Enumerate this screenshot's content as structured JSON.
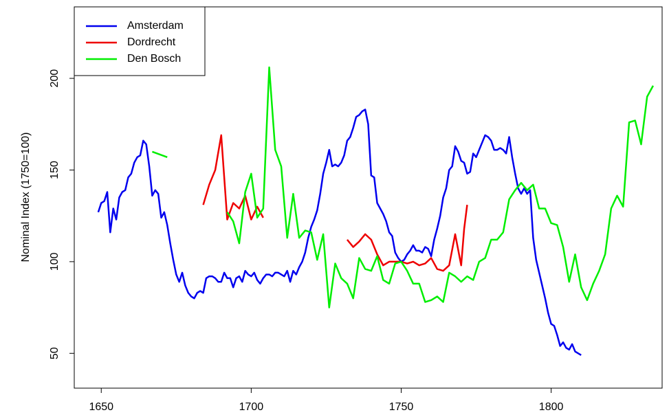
{
  "chart_data": {
    "type": "line",
    "ylabel": "Nominal Index (1750=100)",
    "xlim": [
      1641,
      1837
    ],
    "ylim": [
      31,
      239
    ],
    "xticks": [
      1650,
      1700,
      1750,
      1800
    ],
    "yticks": [
      50,
      100,
      150,
      200
    ],
    "legend": "topleft",
    "series": [
      {
        "name": "Amsterdam",
        "color": "#0000ee",
        "x": [
          1649,
          1650,
          1651,
          1652,
          1653,
          1654,
          1655,
          1656,
          1657,
          1658,
          1659,
          1660,
          1661,
          1662,
          1663,
          1664,
          1665,
          1666,
          1667,
          1668,
          1669,
          1670,
          1671,
          1672,
          1673,
          1674,
          1675,
          1676,
          1677,
          1678,
          1679,
          1680,
          1681,
          1682,
          1683,
          1684,
          1685,
          1686,
          1687,
          1688,
          1689,
          1690,
          1691,
          1692,
          1693,
          1694,
          1695,
          1696,
          1697,
          1698,
          1699,
          1700,
          1701,
          1702,
          1703,
          1704,
          1705,
          1706,
          1707,
          1708,
          1709,
          1710,
          1711,
          1712,
          1713,
          1714,
          1715,
          1716,
          1717,
          1718,
          1719,
          1720,
          1721,
          1722,
          1723,
          1724,
          1725,
          1726,
          1727,
          1728,
          1729,
          1730,
          1731,
          1732,
          1733,
          1734,
          1735,
          1736,
          1737,
          1738,
          1739,
          1740,
          1741,
          1742,
          1743,
          1744,
          1745,
          1746,
          1747,
          1748,
          1749,
          1750,
          1751,
          1752,
          1753,
          1754,
          1755,
          1756,
          1757,
          1758,
          1759,
          1760,
          1761,
          1762,
          1763,
          1764,
          1765,
          1766,
          1767,
          1768,
          1769,
          1770,
          1771,
          1772,
          1773,
          1774,
          1775,
          1776,
          1777,
          1778,
          1779,
          1780,
          1781,
          1782,
          1783,
          1784,
          1785,
          1786,
          1787,
          1788,
          1789,
          1790,
          1791,
          1792,
          1793,
          1794,
          1795,
          1796,
          1797,
          1798,
          1799,
          1800,
          1801,
          1802,
          1803,
          1804,
          1805,
          1806,
          1807,
          1808,
          1809,
          1810
        ],
        "values": [
          127,
          132,
          133,
          138,
          116,
          129,
          123,
          135,
          138,
          139,
          146,
          148,
          154,
          157,
          158,
          166,
          164,
          152,
          136,
          139,
          137,
          124,
          127,
          120,
          110,
          101,
          93,
          89,
          94,
          87,
          83,
          81,
          80,
          83,
          84,
          83,
          91,
          92,
          92,
          91,
          89,
          89,
          94,
          91,
          91,
          86,
          91,
          92,
          89,
          95,
          93,
          92,
          94,
          90,
          88,
          91,
          93,
          93,
          92,
          94,
          94,
          93,
          92,
          95,
          89,
          95,
          93,
          97,
          100,
          105,
          113,
          119,
          123,
          128,
          137,
          148,
          154,
          161,
          152,
          153,
          152,
          154,
          158,
          166,
          168,
          173,
          179,
          180,
          182,
          183,
          175,
          147,
          146,
          132,
          129,
          126,
          122,
          116,
          114,
          105,
          102,
          100,
          101,
          104,
          106,
          109,
          106,
          106,
          105,
          108,
          107,
          103,
          112,
          118,
          125,
          135,
          140,
          150,
          152,
          163,
          160,
          155,
          154,
          148,
          149,
          159,
          157,
          161,
          165,
          169,
          168,
          166,
          161,
          161,
          162,
          161,
          159,
          168,
          157,
          148,
          140,
          137,
          140,
          137,
          139,
          113,
          101,
          94,
          87,
          80,
          72,
          66,
          65,
          60,
          54,
          56,
          53,
          52,
          55,
          51,
          50,
          49
        ]
      },
      {
        "name": "Dordrecht",
        "color": "#ee0000",
        "x": [
          1684,
          1686,
          1688,
          1690,
          1692,
          1694,
          1696,
          1698,
          1700,
          1702,
          1704,
          null,
          1732,
          1734,
          1736,
          1738,
          1740,
          1742,
          1744,
          1746,
          1748,
          1750,
          1752,
          1754,
          1756,
          1758,
          1760,
          1762,
          1764,
          1766,
          1768,
          1770,
          1771,
          1772
        ],
        "values": [
          131,
          142,
          150,
          169,
          123,
          132,
          129,
          136,
          123,
          130,
          124,
          null,
          112,
          108,
          111,
          115,
          112,
          104,
          98,
          100,
          100,
          100,
          99,
          100,
          98,
          99,
          102,
          96,
          95,
          98,
          115,
          98,
          118,
          131
        ]
      },
      {
        "name": "Den Bosch",
        "color": "#00ee00",
        "x": [
          1667,
          1672,
          null,
          1692,
          1694,
          1696,
          1698,
          1700,
          1702,
          1704,
          1706,
          1708,
          1710,
          1712,
          1714,
          1716,
          1718,
          1720,
          1722,
          1724,
          1726,
          1728,
          1730,
          1732,
          1734,
          1736,
          1738,
          1740,
          1742,
          1744,
          1746,
          1748,
          1750,
          1752,
          1754,
          1756,
          1758,
          1760,
          1762,
          1764,
          1766,
          1768,
          1770,
          1772,
          1774,
          1776,
          1778,
          1780,
          1782,
          1784,
          1786,
          1788,
          1790,
          1792,
          1794,
          1796,
          1798,
          1800,
          1802,
          1804,
          1806,
          1808,
          1810,
          1812,
          1814,
          1816,
          1818,
          1820,
          1822,
          1824,
          1826,
          1828,
          1830,
          1832,
          1834
        ],
        "values": [
          160,
          157,
          null,
          127,
          122,
          110,
          138,
          148,
          124,
          129,
          206,
          161,
          152,
          113,
          137,
          113,
          117,
          116,
          101,
          115,
          75,
          99,
          91,
          88,
          80,
          102,
          96,
          95,
          103,
          90,
          88,
          99,
          100,
          95,
          88,
          88,
          78,
          79,
          81,
          78,
          94,
          92,
          89,
          92,
          90,
          100,
          102,
          112,
          112,
          116,
          134,
          139,
          143,
          139,
          142,
          129,
          129,
          121,
          120,
          108,
          89,
          104,
          86,
          79,
          88,
          95,
          104,
          129,
          136,
          130,
          176,
          177,
          164,
          190,
          196
        ]
      }
    ]
  }
}
